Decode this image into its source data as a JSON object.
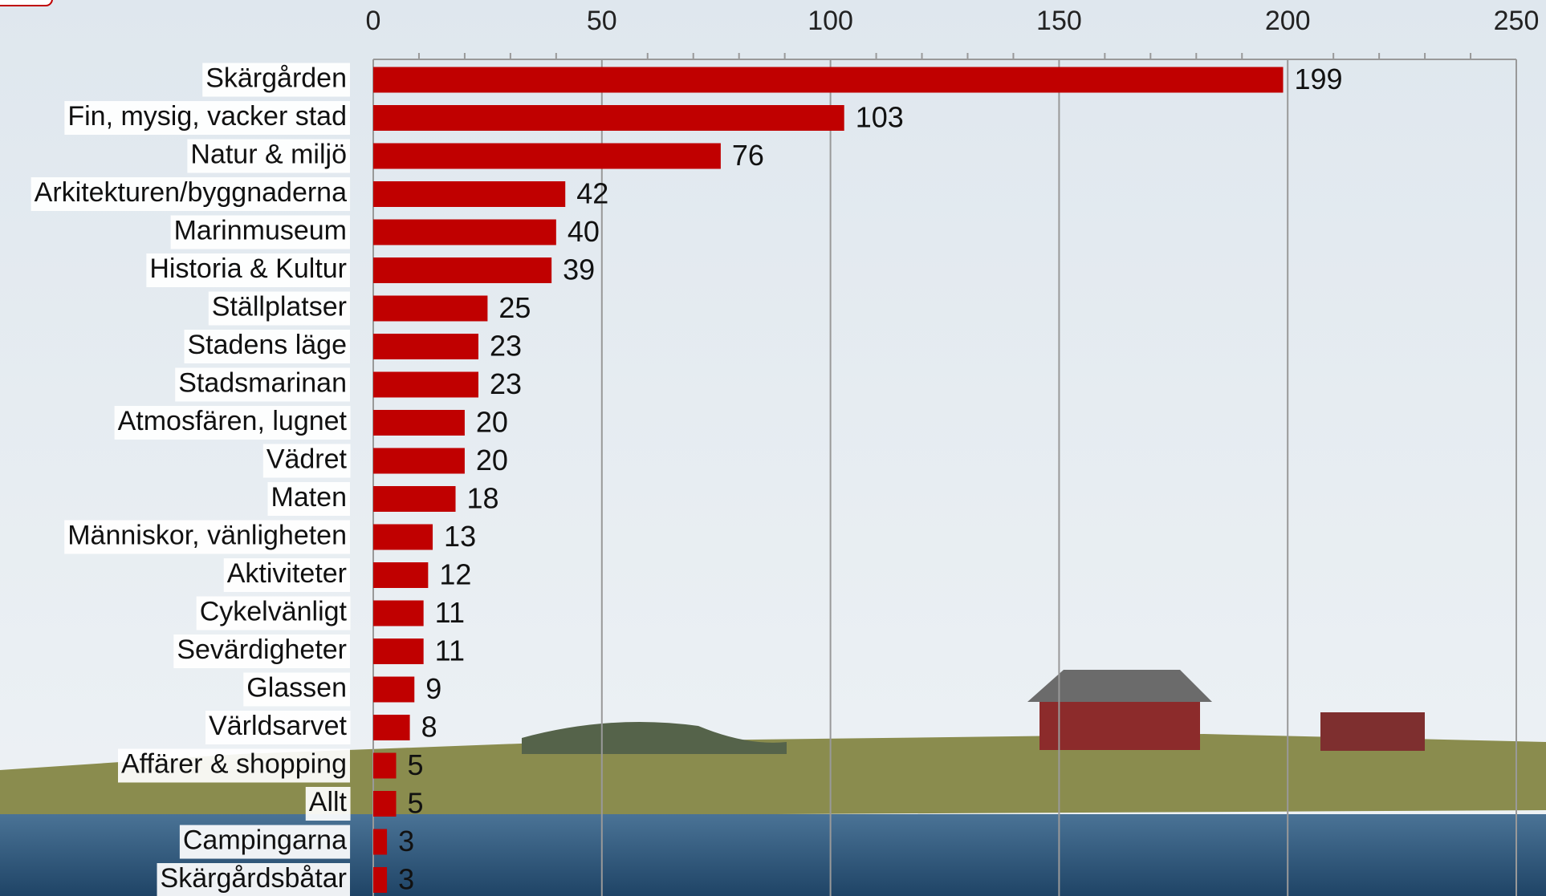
{
  "chart_data": {
    "type": "bar",
    "orientation": "horizontal",
    "categories": [
      "Skärgården",
      "Fin, mysig, vacker stad",
      "Natur & miljö",
      "Arkitekturen/byggnaderna",
      "Marinmuseum",
      "Historia & Kultur",
      "Ställplatser",
      "Stadens läge",
      "Stadsmarinan",
      "Atmosfären, lugnet",
      "Vädret",
      "Maten",
      "Människor, vänligheten",
      "Aktiviteter",
      "Cykelvänligt",
      "Sevärdigheter",
      "Glassen",
      "Världsarvet",
      "Affärer & shopping",
      "Allt",
      "Campingarna",
      "Skärgårdsbåtar"
    ],
    "values": [
      199,
      103,
      76,
      42,
      40,
      39,
      25,
      23,
      23,
      20,
      20,
      18,
      13,
      12,
      11,
      11,
      9,
      8,
      5,
      5,
      3,
      3
    ],
    "color": "#c00000",
    "xlim": [
      0,
      250
    ],
    "xticks": [
      0,
      50,
      100,
      150,
      200,
      250
    ],
    "minor_xticks": [
      10,
      20,
      30,
      40,
      60,
      70,
      80,
      90,
      110,
      120,
      130,
      140,
      160,
      170,
      180,
      190,
      210,
      220,
      230,
      240
    ],
    "grid": true
  }
}
